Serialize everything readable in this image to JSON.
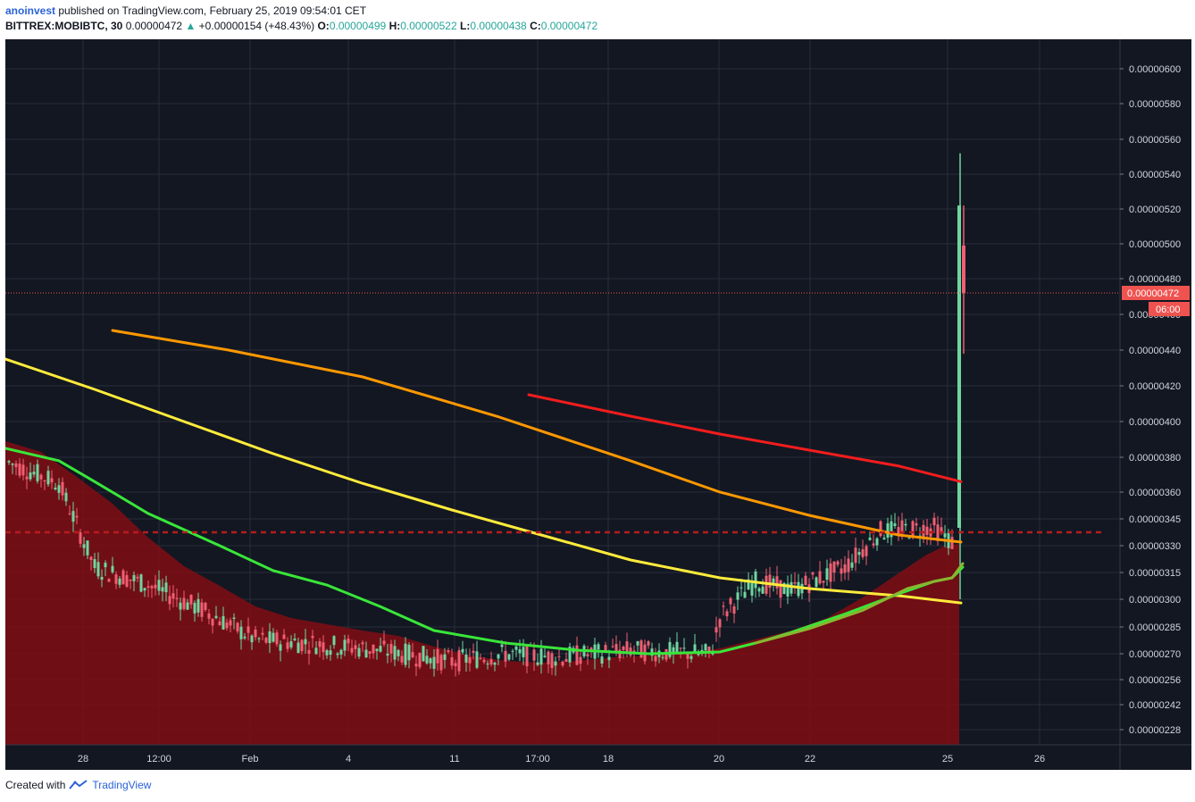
{
  "header": {
    "user": "anoinvest",
    "published": "published on TradingView.com, February 25, 2019 09:54:01 CET",
    "symbol": "BITTREX:MOBIBTC, 30",
    "last": "0.00000472",
    "change": "+0.00000154 (+48.43%)",
    "o_label": "O:",
    "o_val": "0.00000499",
    "h_label": "H:",
    "h_val": "0.00000522",
    "l_label": "L:",
    "l_val": "0.00000438",
    "c_label": "C:",
    "c_val": "0.00000472"
  },
  "footer": {
    "created": "Created with",
    "brand": "TradingView"
  },
  "colors": {
    "background": "#131722",
    "grid": "#2a2e39",
    "up": "#6fd6a0",
    "down": "#ef5f72",
    "ma_yellow": "#ffeb3b",
    "ma_orange": "#ff9800",
    "ma_red": "#f21d1d",
    "ma_green": "#39e639",
    "ma_olive": "#8bb530",
    "area_fill": "#7b0d15",
    "hline": "#b71c1c",
    "price_badge": "#ef5350"
  },
  "chart_data": {
    "type": "candlestick",
    "y_ticks": [
      "0.00000600",
      "0.00000580",
      "0.00000560",
      "0.00000540",
      "0.00000520",
      "0.00000500",
      "0.00000480",
      "0.00000460",
      "0.00000440",
      "0.00000420",
      "0.00000400",
      "0.00000380",
      "0.00000360",
      "0.00000345",
      "0.00000330",
      "0.00000315",
      "0.00000300",
      "0.00000285",
      "0.00000270",
      "0.00000256",
      "0.00000242",
      "0.00000228"
    ],
    "x_labels": [
      "28",
      "12:00",
      "Feb",
      "4",
      "11",
      "17:00",
      "18",
      "20",
      "22",
      "25",
      "26"
    ],
    "last_price": "0.00000472",
    "countdown": "06:00",
    "horizontal_line": 3.375e-06
  }
}
